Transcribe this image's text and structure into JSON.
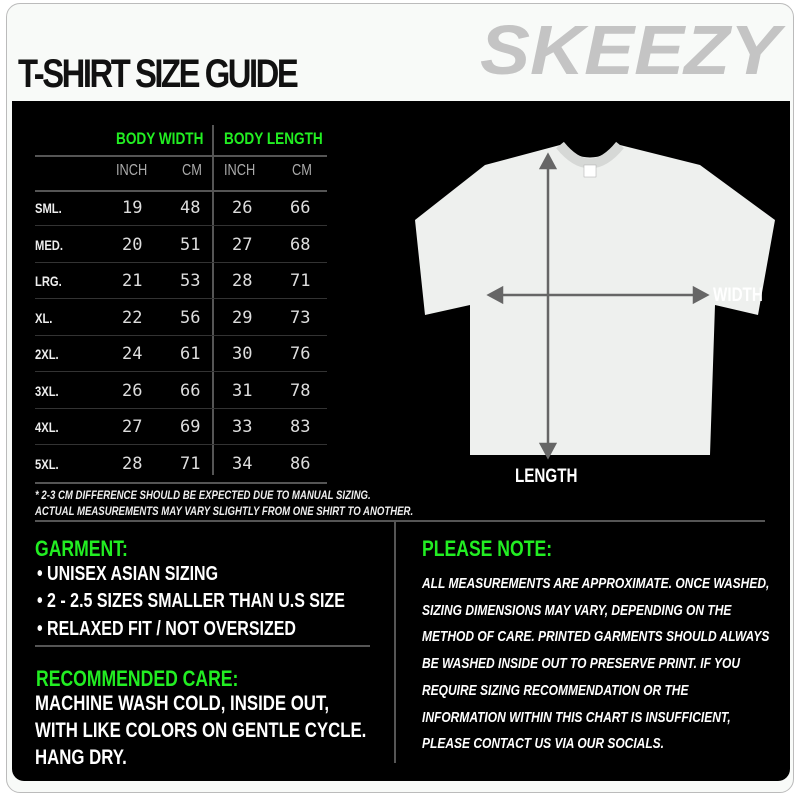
{
  "title": "T-SHIRT SIZE GUIDE",
  "brand": "SKEEZY",
  "colors": {
    "accent": "#22ee22",
    "background": "#000000",
    "logo": "#c4c4c4"
  },
  "table": {
    "groups": [
      "BODY WIDTH",
      "BODY LENGTH"
    ],
    "units": [
      "INCH",
      "CM",
      "INCH",
      "CM"
    ],
    "rows": [
      {
        "size": "SML.",
        "values": [
          "19",
          "48",
          "26",
          "66"
        ]
      },
      {
        "size": "MED.",
        "values": [
          "20",
          "51",
          "27",
          "68"
        ]
      },
      {
        "size": "LRG.",
        "values": [
          "21",
          "53",
          "28",
          "71"
        ]
      },
      {
        "size": "XL.",
        "values": [
          "22",
          "56",
          "29",
          "73"
        ]
      },
      {
        "size": "2XL.",
        "values": [
          "24",
          "61",
          "30",
          "76"
        ]
      },
      {
        "size": "3XL.",
        "values": [
          "26",
          "66",
          "31",
          "78"
        ]
      },
      {
        "size": "4XL.",
        "values": [
          "27",
          "69",
          "33",
          "83"
        ]
      },
      {
        "size": "5XL.",
        "values": [
          "28",
          "71",
          "34",
          "86"
        ]
      }
    ]
  },
  "notes": [
    "* 2-3 CM DIFFERENCE SHOULD BE EXPECTED DUE TO MANUAL SIZING.",
    "ACTUAL MEASUREMENTS MAY VARY SLIGHTLY FROM ONE SHIRT TO ANOTHER."
  ],
  "diagram": {
    "width_label": "WIDTH",
    "length_label": "LENGTH"
  },
  "garment": {
    "heading": "GARMENT:",
    "items": [
      "UNISEX ASIAN SIZING",
      "2 - 2.5 SIZES SMALLER THAN U.S SIZE",
      "RELAXED FIT / NOT OVERSIZED"
    ]
  },
  "care": {
    "heading": "RECOMMENDED CARE:",
    "lines": [
      "MACHINE WASH COLD, INSIDE OUT,",
      "WITH LIKE COLORS ON GENTLE CYCLE.",
      "HANG DRY."
    ]
  },
  "please_note": {
    "heading": "PLEASE NOTE:",
    "lines": [
      "ALL MEASUREMENTS ARE APPROXIMATE. ONCE  WASHED,",
      "SIZING DIMENSIONS MAY VARY, DEPENDING ON THE",
      "METHOD OF CARE. PRINTED GARMENTS SHOULD ALWAYS",
      "BE WASHED INSIDE OUT TO PRESERVE PRINT.  IF YOU",
      "REQUIRE SIZING  RECOMMENDATION OR THE",
      "INFORMATION WITHIN THIS CHART IS INSUFFICIENT,",
      "PLEASE CONTACT US VIA OUR SOCIALS."
    ]
  }
}
